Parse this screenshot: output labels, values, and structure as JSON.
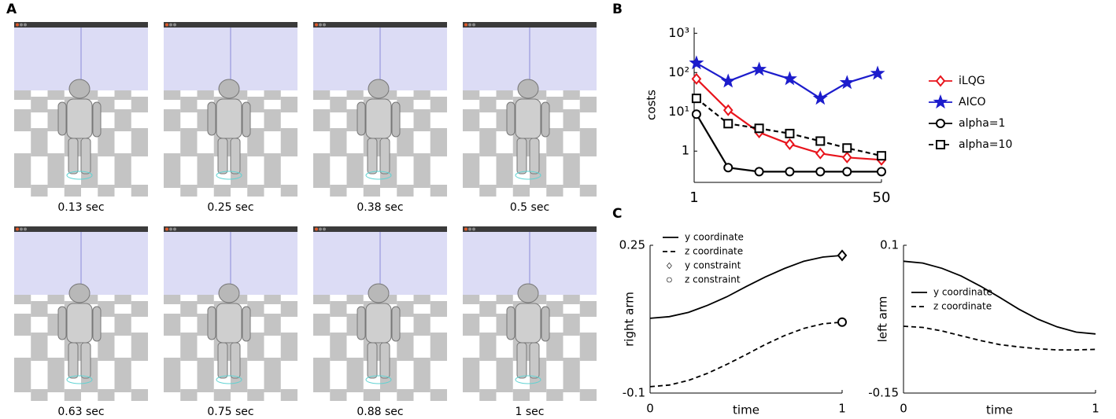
{
  "figure": {
    "panel_labels": [
      "A",
      "B",
      "C"
    ],
    "snapshots": [
      "0.13 sec",
      "0.25 sec",
      "0.38 sec",
      "0.5 sec",
      "0.63 sec",
      "0.75 sec",
      "0.88 sec",
      "1 sec"
    ]
  },
  "chart_data": [
    {
      "type": "line",
      "ylabel": "costs",
      "log_y": true,
      "xlim": [
        1,
        50
      ],
      "xticks": [
        1,
        50
      ],
      "ylim": [
        0.16,
        1400
      ],
      "yticks": [
        1,
        {
          "value": 10,
          "label": "10¹"
        },
        {
          "value": 100,
          "label": "10²"
        },
        {
          "value": 1000,
          "label": "10³"
        }
      ],
      "series": [
        {
          "name": "iLQG",
          "color": "#e8141c",
          "marker": "diamond",
          "dash": false,
          "x": [
            1.6,
            9.9,
            18,
            26,
            34,
            41,
            50
          ],
          "values": [
            69,
            11,
            3,
            1.5,
            0.87,
            0.69,
            0.6
          ]
        },
        {
          "name": "AICO",
          "color": "#1c1ccc",
          "marker": "star",
          "dash": false,
          "x": [
            1.6,
            9.9,
            18,
            26,
            34,
            41,
            49
          ],
          "values": [
            174,
            60,
            120,
            69,
            22,
            55,
            95
          ]
        },
        {
          "name": "alpha=1",
          "color": "#000000",
          "marker": "circle",
          "dash": false,
          "x": [
            1.6,
            9.9,
            18,
            26,
            34,
            41,
            50
          ],
          "values": [
            8.7,
            0.38,
            0.3,
            0.3,
            0.3,
            0.3,
            0.3
          ]
        },
        {
          "name": "alpha=10",
          "color": "#000000",
          "marker": "square",
          "dash": true,
          "x": [
            1.6,
            9.9,
            18,
            26,
            34,
            41,
            50
          ],
          "values": [
            22,
            5,
            3.8,
            2.8,
            1.8,
            1.2,
            0.76
          ]
        }
      ]
    },
    {
      "type": "line",
      "xlabel": "time",
      "ylabel": "right arm",
      "xlim": [
        0,
        1
      ],
      "xticks": [
        0,
        1
      ],
      "ylim": [
        -0.1,
        0.25
      ],
      "yticks": [
        -0.1,
        0.25
      ],
      "series": [
        {
          "name": "y coordinate",
          "color": "#000000",
          "dash": false,
          "line": true,
          "x": [
            0,
            0.1,
            0.2,
            0.3,
            0.4,
            0.5,
            0.6,
            0.7,
            0.8,
            0.9,
            1
          ],
          "values": [
            0.077,
            0.081,
            0.091,
            0.108,
            0.128,
            0.152,
            0.175,
            0.195,
            0.212,
            0.222,
            0.226
          ]
        },
        {
          "name": "z coordinate",
          "color": "#000000",
          "dash": true,
          "line": true,
          "x": [
            0,
            0.1,
            0.2,
            0.3,
            0.4,
            0.5,
            0.6,
            0.7,
            0.8,
            0.9,
            1
          ],
          "values": [
            -0.085,
            -0.081,
            -0.07,
            -0.053,
            -0.032,
            -0.009,
            0.015,
            0.036,
            0.053,
            0.064,
            0.068
          ]
        },
        {
          "name": "y constraint",
          "color": "#000000",
          "marker": "diamond",
          "line": false,
          "x": [
            1
          ],
          "values": [
            0.226
          ]
        },
        {
          "name": "z constraint",
          "color": "#000000",
          "marker": "circle",
          "line": false,
          "x": [
            1
          ],
          "values": [
            0.068
          ]
        }
      ]
    },
    {
      "type": "line",
      "xlabel": "time",
      "ylabel": "left arm",
      "xlim": [
        0,
        1
      ],
      "xticks": [
        0,
        1
      ],
      "ylim": [
        -0.15,
        0.1
      ],
      "yticks": [
        -0.15,
        0.1
      ],
      "series": [
        {
          "name": "y coordinate",
          "color": "#000000",
          "dash": false,
          "line": true,
          "x": [
            0,
            0.1,
            0.2,
            0.3,
            0.4,
            0.5,
            0.6,
            0.7,
            0.8,
            0.9,
            1
          ],
          "values": [
            0.073,
            0.07,
            0.061,
            0.048,
            0.031,
            0.012,
            -0.008,
            -0.025,
            -0.038,
            -0.047,
            -0.05
          ]
        },
        {
          "name": "z coordinate",
          "color": "#000000",
          "dash": true,
          "line": true,
          "x": [
            0,
            0.1,
            0.2,
            0.3,
            0.4,
            0.5,
            0.6,
            0.7,
            0.8,
            0.9,
            1
          ],
          "values": [
            -0.037,
            -0.039,
            -0.045,
            -0.053,
            -0.061,
            -0.068,
            -0.072,
            -0.075,
            -0.077,
            -0.077,
            -0.076
          ]
        }
      ]
    }
  ]
}
